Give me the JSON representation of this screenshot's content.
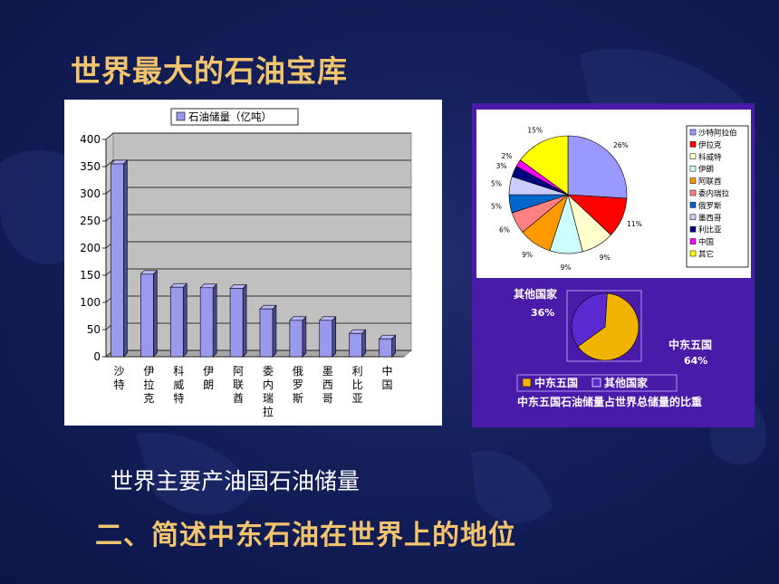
{
  "slide": {
    "title": "世界最大的石油宝库",
    "caption": "世界主要产油国石油储量",
    "heading2": "二、简述中东石油在世界上的地位"
  },
  "chart_data": [
    {
      "type": "bar",
      "legend": "石油储量（亿吨）",
      "categories": [
        "沙特",
        "伊拉克",
        "科威特",
        "伊朗",
        "阿联酋",
        "委内瑞拉",
        "俄罗斯",
        "墨西哥",
        "利比亚",
        "中国"
      ],
      "values": [
        355,
        152,
        128,
        127,
        126,
        88,
        67,
        67,
        43,
        33
      ],
      "ylim": [
        0,
        400
      ],
      "yticks": [
        "0",
        "50",
        "100",
        "150",
        "200",
        "250",
        "300",
        "350",
        "400"
      ],
      "bar_color": "#9999ee",
      "grid": true,
      "legend_position": "top"
    },
    {
      "type": "pie",
      "labels": [
        "沙特阿拉伯",
        "伊拉克",
        "科威特",
        "伊朗",
        "阿联酋",
        "委内瑞拉",
        "俄罗斯",
        "墨西哥",
        "利比亚",
        "中国",
        "其它"
      ],
      "values": [
        26,
        11,
        9,
        9,
        9,
        6,
        5,
        5,
        3,
        2,
        15
      ],
      "value_labels": [
        "26%",
        "11%",
        "9%",
        "9%",
        "9%",
        "6%",
        "5%",
        "5%",
        "3%",
        "2%",
        "15%"
      ],
      "colors": [
        "#9999ff",
        "#ff0000",
        "#ffffcc",
        "#ccffff",
        "#ff9900",
        "#ff8080",
        "#0066cc",
        "#ccccff",
        "#000080",
        "#ff00ff",
        "#ffff00"
      ],
      "legend_position": "right"
    },
    {
      "type": "pie",
      "title": "中东五国石油储量占世界总储量的比重",
      "labels": [
        "中东五国",
        "其他国家"
      ],
      "values": [
        64,
        36
      ],
      "slice_labels": [
        {
          "name": "中东五国",
          "pct": "64%"
        },
        {
          "name": "其他国家",
          "pct": "36%"
        }
      ],
      "colors": [
        "#f0b400",
        "#5a2ad0"
      ],
      "legend_position": "bottom"
    }
  ]
}
